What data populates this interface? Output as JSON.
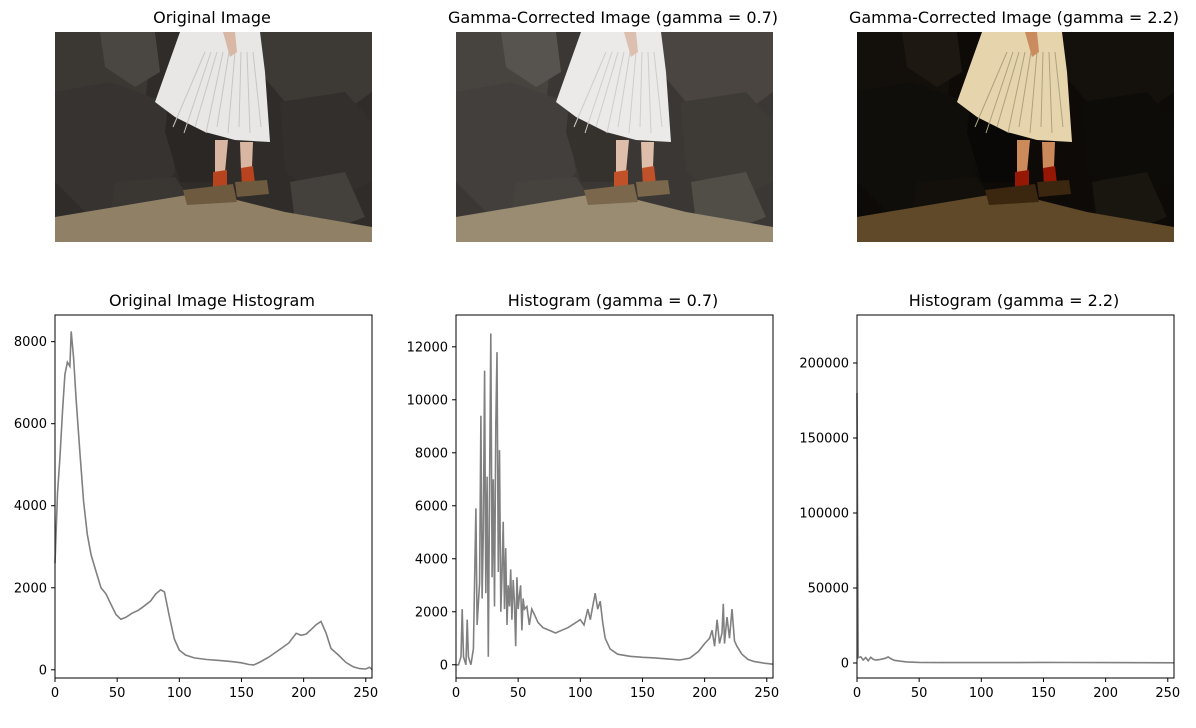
{
  "image_panels": [
    {
      "title": "Original Image",
      "tone": "original"
    },
    {
      "title": "Gamma-Corrected Image (gamma = 0.7)",
      "tone": "brighter"
    },
    {
      "title": "Gamma-Corrected Image (gamma = 2.2)",
      "tone": "darker"
    }
  ],
  "colors": {
    "line": "#808080",
    "axis": "#000000"
  },
  "chart_data": [
    {
      "type": "line",
      "title": "Original Image Histogram",
      "xlim": [
        0,
        255
      ],
      "ylim": [
        -200,
        8650
      ],
      "xticks": [
        0,
        50,
        100,
        150,
        200,
        250
      ],
      "yticks": [
        0,
        2000,
        4000,
        6000,
        8000
      ],
      "points": [
        [
          0,
          2600
        ],
        [
          2,
          4300
        ],
        [
          4,
          5200
        ],
        [
          6,
          6300
        ],
        [
          8,
          7200
        ],
        [
          10,
          7500
        ],
        [
          12,
          7400
        ],
        [
          13,
          8250
        ],
        [
          15,
          7600
        ],
        [
          17,
          6600
        ],
        [
          20,
          5300
        ],
        [
          23,
          4100
        ],
        [
          26,
          3300
        ],
        [
          29,
          2800
        ],
        [
          33,
          2400
        ],
        [
          37,
          2000
        ],
        [
          41,
          1850
        ],
        [
          45,
          1600
        ],
        [
          49,
          1350
        ],
        [
          53,
          1230
        ],
        [
          57,
          1280
        ],
        [
          62,
          1380
        ],
        [
          67,
          1450
        ],
        [
          72,
          1560
        ],
        [
          77,
          1680
        ],
        [
          81,
          1850
        ],
        [
          85,
          1950
        ],
        [
          88,
          1900
        ],
        [
          92,
          1300
        ],
        [
          96,
          750
        ],
        [
          100,
          480
        ],
        [
          105,
          360
        ],
        [
          112,
          290
        ],
        [
          122,
          250
        ],
        [
          132,
          230
        ],
        [
          142,
          200
        ],
        [
          150,
          170
        ],
        [
          156,
          130
        ],
        [
          160,
          120
        ],
        [
          165,
          190
        ],
        [
          172,
          310
        ],
        [
          180,
          480
        ],
        [
          188,
          650
        ],
        [
          194,
          890
        ],
        [
          198,
          840
        ],
        [
          202,
          870
        ],
        [
          206,
          980
        ],
        [
          210,
          1100
        ],
        [
          214,
          1180
        ],
        [
          218,
          900
        ],
        [
          222,
          520
        ],
        [
          228,
          360
        ],
        [
          234,
          180
        ],
        [
          240,
          70
        ],
        [
          245,
          30
        ],
        [
          250,
          20
        ],
        [
          253,
          60
        ],
        [
          255,
          10
        ]
      ]
    },
    {
      "type": "line",
      "title": "Histogram (gamma = 0.7)",
      "xlim": [
        0,
        255
      ],
      "ylim": [
        -500,
        13200
      ],
      "xticks": [
        0,
        50,
        100,
        150,
        200,
        250
      ],
      "yticks": [
        0,
        2000,
        4000,
        6000,
        8000,
        10000,
        12000
      ],
      "points": [
        [
          0,
          0
        ],
        [
          2,
          0
        ],
        [
          4,
          300
        ],
        [
          5,
          2100
        ],
        [
          6,
          300
        ],
        [
          8,
          0
        ],
        [
          9,
          1700
        ],
        [
          10,
          300
        ],
        [
          12,
          0
        ],
        [
          14,
          600
        ],
        [
          16,
          5900
        ],
        [
          17,
          1500
        ],
        [
          19,
          3100
        ],
        [
          20,
          9400
        ],
        [
          21,
          2500
        ],
        [
          22,
          5000
        ],
        [
          23,
          11100
        ],
        [
          24,
          2700
        ],
        [
          25,
          7100
        ],
        [
          26,
          300
        ],
        [
          27,
          6800
        ],
        [
          28,
          12500
        ],
        [
          29,
          3300
        ],
        [
          30,
          7000
        ],
        [
          31,
          2200
        ],
        [
          32,
          9000
        ],
        [
          33,
          11800
        ],
        [
          34,
          3500
        ],
        [
          35,
          8100
        ],
        [
          36,
          2000
        ],
        [
          37,
          3400
        ],
        [
          38,
          5400
        ],
        [
          39,
          2100
        ],
        [
          40,
          4400
        ],
        [
          41,
          1500
        ],
        [
          42,
          3000
        ],
        [
          43,
          2200
        ],
        [
          44,
          3600
        ],
        [
          45,
          1700
        ],
        [
          46,
          3200
        ],
        [
          47,
          2400
        ],
        [
          48,
          700
        ],
        [
          49,
          3300
        ],
        [
          50,
          2100
        ],
        [
          51,
          2600
        ],
        [
          52,
          3000
        ],
        [
          53,
          1300
        ],
        [
          54,
          2500
        ],
        [
          55,
          2100
        ],
        [
          57,
          2200
        ],
        [
          59,
          1500
        ],
        [
          61,
          2100
        ],
        [
          63,
          1900
        ],
        [
          66,
          1600
        ],
        [
          70,
          1400
        ],
        [
          75,
          1300
        ],
        [
          80,
          1200
        ],
        [
          85,
          1300
        ],
        [
          90,
          1400
        ],
        [
          95,
          1550
        ],
        [
          100,
          1700
        ],
        [
          103,
          1500
        ],
        [
          106,
          2100
        ],
        [
          108,
          1700
        ],
        [
          110,
          2200
        ],
        [
          112,
          2700
        ],
        [
          114,
          2100
        ],
        [
          116,
          2400
        ],
        [
          118,
          1600
        ],
        [
          120,
          1000
        ],
        [
          124,
          600
        ],
        [
          130,
          400
        ],
        [
          140,
          320
        ],
        [
          150,
          280
        ],
        [
          160,
          260
        ],
        [
          170,
          220
        ],
        [
          180,
          180
        ],
        [
          188,
          250
        ],
        [
          195,
          500
        ],
        [
          200,
          800
        ],
        [
          204,
          1000
        ],
        [
          206,
          1300
        ],
        [
          208,
          700
        ],
        [
          210,
          1700
        ],
        [
          212,
          800
        ],
        [
          214,
          1200
        ],
        [
          215,
          2300
        ],
        [
          216,
          800
        ],
        [
          218,
          1800
        ],
        [
          220,
          1000
        ],
        [
          222,
          2100
        ],
        [
          224,
          900
        ],
        [
          226,
          700
        ],
        [
          230,
          400
        ],
        [
          235,
          200
        ],
        [
          240,
          120
        ],
        [
          248,
          60
        ],
        [
          255,
          20
        ]
      ]
    },
    {
      "type": "line",
      "title": "Histogram (gamma = 2.2)",
      "xlim": [
        0,
        255
      ],
      "ylim": [
        -10000,
        232000
      ],
      "xticks": [
        0,
        50,
        100,
        150,
        200,
        250
      ],
      "yticks": [
        0,
        50000,
        100000,
        150000,
        200000
      ],
      "points": [
        [
          0,
          180000
        ],
        [
          1,
          3500
        ],
        [
          3,
          4200
        ],
        [
          5,
          2000
        ],
        [
          7,
          3600
        ],
        [
          9,
          1500
        ],
        [
          11,
          3800
        ],
        [
          13,
          2500
        ],
        [
          15,
          1900
        ],
        [
          18,
          2300
        ],
        [
          21,
          2800
        ],
        [
          23,
          3200
        ],
        [
          25,
          4100
        ],
        [
          27,
          3000
        ],
        [
          30,
          1800
        ],
        [
          35,
          1200
        ],
        [
          40,
          700
        ],
        [
          50,
          400
        ],
        [
          70,
          300
        ],
        [
          100,
          250
        ],
        [
          130,
          300
        ],
        [
          150,
          400
        ],
        [
          170,
          350
        ],
        [
          200,
          300
        ],
        [
          230,
          200
        ],
        [
          255,
          150
        ]
      ]
    }
  ]
}
